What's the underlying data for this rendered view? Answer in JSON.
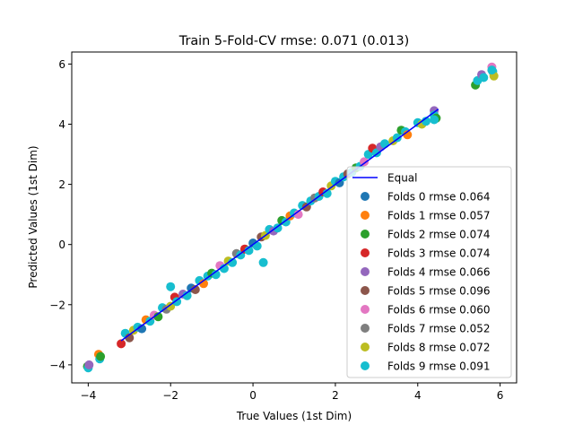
{
  "chart_data": {
    "type": "scatter",
    "title": "Train 5-Fold-CV rmse: 0.071 (0.013)",
    "xlabel": "True Values (1st Dim)",
    "ylabel": "Predicted Values (1st Dim)",
    "xlim": [
      -4.4,
      6.4
    ],
    "ylim": [
      -4.6,
      6.4
    ],
    "xticks": [
      -4,
      -2,
      0,
      2,
      4,
      6
    ],
    "yticks": [
      -4,
      -2,
      0,
      2,
      4,
      6
    ],
    "xtick_labels": [
      "−4",
      "−2",
      "0",
      "2",
      "4",
      "6"
    ],
    "ytick_labels": [
      "−4",
      "−2",
      "0",
      "2",
      "4",
      "6"
    ],
    "grid": false,
    "legend_position": "lower-right",
    "equal_line": {
      "name": "Equal",
      "color": "#0000ff",
      "x": [
        -3.2,
        4.5
      ],
      "y": [
        -3.2,
        4.5
      ]
    },
    "folds": [
      {
        "name": "Folds 0 rmse 0.064",
        "color": "#1f77b4",
        "rmse": 0.064
      },
      {
        "name": "Folds 1 rmse 0.057",
        "color": "#ff7f0e",
        "rmse": 0.057
      },
      {
        "name": "Folds 2 rmse 0.074",
        "color": "#2ca02c",
        "rmse": 0.074
      },
      {
        "name": "Folds 3 rmse 0.074",
        "color": "#d62728",
        "rmse": 0.074
      },
      {
        "name": "Folds 4 rmse 0.066",
        "color": "#9467bd",
        "rmse": 0.066
      },
      {
        "name": "Folds 5 rmse 0.096",
        "color": "#8c564b",
        "rmse": 0.096
      },
      {
        "name": "Folds 6 rmse 0.060",
        "color": "#e377c2",
        "rmse": 0.06
      },
      {
        "name": "Folds 7 rmse 0.052",
        "color": "#7f7f7f",
        "rmse": 0.052
      },
      {
        "name": "Folds 8 rmse 0.072",
        "color": "#bcbd22",
        "rmse": 0.072
      },
      {
        "name": "Folds 9 rmse 0.091",
        "color": "#17becf",
        "rmse": 0.091
      }
    ],
    "points": [
      {
        "x": -4.02,
        "y": -4.05,
        "f": 2
      },
      {
        "x": -4.0,
        "y": -4.1,
        "f": 9
      },
      {
        "x": -3.98,
        "y": -4.0,
        "f": 4
      },
      {
        "x": -3.75,
        "y": -3.65,
        "f": 1
      },
      {
        "x": -3.72,
        "y": -3.8,
        "f": 9
      },
      {
        "x": -3.7,
        "y": -3.72,
        "f": 2
      },
      {
        "x": -3.2,
        "y": -3.3,
        "f": 3
      },
      {
        "x": -3.1,
        "y": -2.95,
        "f": 9
      },
      {
        "x": -3.0,
        "y": -3.1,
        "f": 5
      },
      {
        "x": -2.9,
        "y": -2.85,
        "f": 8
      },
      {
        "x": -2.8,
        "y": -2.75,
        "f": 9
      },
      {
        "x": -2.7,
        "y": -2.8,
        "f": 0
      },
      {
        "x": -2.6,
        "y": -2.5,
        "f": 1
      },
      {
        "x": -2.5,
        "y": -2.55,
        "f": 9
      },
      {
        "x": -2.4,
        "y": -2.35,
        "f": 6
      },
      {
        "x": -2.3,
        "y": -2.4,
        "f": 2
      },
      {
        "x": -2.2,
        "y": -2.1,
        "f": 9
      },
      {
        "x": -2.1,
        "y": -2.15,
        "f": 7
      },
      {
        "x": -2.0,
        "y": -1.4,
        "f": 9
      },
      {
        "x": -2.0,
        "y": -2.05,
        "f": 8
      },
      {
        "x": -1.9,
        "y": -1.75,
        "f": 3
      },
      {
        "x": -1.85,
        "y": -1.9,
        "f": 9
      },
      {
        "x": -1.7,
        "y": -1.65,
        "f": 4
      },
      {
        "x": -1.6,
        "y": -1.7,
        "f": 9
      },
      {
        "x": -1.5,
        "y": -1.45,
        "f": 0
      },
      {
        "x": -1.4,
        "y": -1.5,
        "f": 5
      },
      {
        "x": -1.3,
        "y": -1.2,
        "f": 9
      },
      {
        "x": -1.2,
        "y": -1.3,
        "f": 1
      },
      {
        "x": -1.1,
        "y": -1.05,
        "f": 9
      },
      {
        "x": -1.0,
        "y": -0.95,
        "f": 2
      },
      {
        "x": -0.9,
        "y": -1.0,
        "f": 9
      },
      {
        "x": -0.8,
        "y": -0.7,
        "f": 6
      },
      {
        "x": -0.7,
        "y": -0.8,
        "f": 9
      },
      {
        "x": -0.6,
        "y": -0.55,
        "f": 8
      },
      {
        "x": -0.5,
        "y": -0.6,
        "f": 9
      },
      {
        "x": -0.4,
        "y": -0.3,
        "f": 7
      },
      {
        "x": -0.3,
        "y": -0.35,
        "f": 9
      },
      {
        "x": -0.2,
        "y": -0.15,
        "f": 3
      },
      {
        "x": -0.1,
        "y": -0.2,
        "f": 9
      },
      {
        "x": 0.0,
        "y": 0.05,
        "f": 0
      },
      {
        "x": 0.1,
        "y": -0.05,
        "f": 9
      },
      {
        "x": 0.2,
        "y": 0.25,
        "f": 5
      },
      {
        "x": 0.25,
        "y": -0.6,
        "f": 9
      },
      {
        "x": 0.3,
        "y": 0.3,
        "f": 8
      },
      {
        "x": 0.4,
        "y": 0.5,
        "f": 9
      },
      {
        "x": 0.5,
        "y": 0.45,
        "f": 4
      },
      {
        "x": 0.6,
        "y": 0.55,
        "f": 9
      },
      {
        "x": 0.7,
        "y": 0.8,
        "f": 2
      },
      {
        "x": 0.8,
        "y": 0.75,
        "f": 9
      },
      {
        "x": 0.9,
        "y": 0.95,
        "f": 1
      },
      {
        "x": 1.0,
        "y": 1.05,
        "f": 9
      },
      {
        "x": 1.1,
        "y": 1.0,
        "f": 6
      },
      {
        "x": 1.2,
        "y": 1.3,
        "f": 9
      },
      {
        "x": 1.3,
        "y": 1.25,
        "f": 5
      },
      {
        "x": 1.4,
        "y": 1.45,
        "f": 9
      },
      {
        "x": 1.5,
        "y": 1.55,
        "f": 7
      },
      {
        "x": 1.6,
        "y": 1.6,
        "f": 9
      },
      {
        "x": 1.7,
        "y": 1.75,
        "f": 3
      },
      {
        "x": 1.8,
        "y": 1.7,
        "f": 9
      },
      {
        "x": 1.9,
        "y": 1.95,
        "f": 8
      },
      {
        "x": 2.0,
        "y": 2.1,
        "f": 9
      },
      {
        "x": 2.1,
        "y": 2.05,
        "f": 0
      },
      {
        "x": 2.2,
        "y": 2.25,
        "f": 9
      },
      {
        "x": 2.3,
        "y": 2.35,
        "f": 5
      },
      {
        "x": 2.4,
        "y": 2.4,
        "f": 9
      },
      {
        "x": 2.5,
        "y": 2.55,
        "f": 2
      },
      {
        "x": 2.6,
        "y": 2.6,
        "f": 9
      },
      {
        "x": 2.7,
        "y": 2.75,
        "f": 6
      },
      {
        "x": 2.8,
        "y": 3.0,
        "f": 9
      },
      {
        "x": 2.9,
        "y": 3.2,
        "f": 3
      },
      {
        "x": 3.0,
        "y": 3.05,
        "f": 9
      },
      {
        "x": 3.1,
        "y": 3.25,
        "f": 4
      },
      {
        "x": 3.2,
        "y": 3.35,
        "f": 9
      },
      {
        "x": 3.4,
        "y": 3.45,
        "f": 8
      },
      {
        "x": 3.5,
        "y": 3.55,
        "f": 9
      },
      {
        "x": 3.6,
        "y": 3.8,
        "f": 2
      },
      {
        "x": 3.7,
        "y": 3.75,
        "f": 9
      },
      {
        "x": 3.75,
        "y": 3.65,
        "f": 1
      },
      {
        "x": 4.0,
        "y": 4.05,
        "f": 9
      },
      {
        "x": 4.1,
        "y": 4.0,
        "f": 8
      },
      {
        "x": 4.2,
        "y": 4.1,
        "f": 9
      },
      {
        "x": 4.4,
        "y": 4.45,
        "f": 4
      },
      {
        "x": 4.4,
        "y": 4.3,
        "f": 9
      },
      {
        "x": 4.45,
        "y": 4.2,
        "f": 2
      },
      {
        "x": 4.4,
        "y": 4.15,
        "f": 9
      },
      {
        "x": 5.4,
        "y": 5.3,
        "f": 2
      },
      {
        "x": 5.45,
        "y": 5.45,
        "f": 9
      },
      {
        "x": 5.55,
        "y": 5.65,
        "f": 4
      },
      {
        "x": 5.6,
        "y": 5.55,
        "f": 9
      },
      {
        "x": 5.8,
        "y": 5.9,
        "f": 6
      },
      {
        "x": 5.82,
        "y": 5.75,
        "f": 9
      },
      {
        "x": 5.85,
        "y": 5.6,
        "f": 8
      },
      {
        "x": 5.8,
        "y": 5.8,
        "f": 9
      }
    ]
  }
}
